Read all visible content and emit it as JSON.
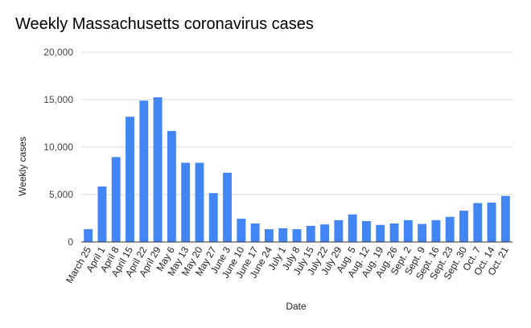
{
  "chart_data": {
    "type": "bar",
    "title": "Weekly Massachusetts coronavirus cases",
    "xlabel": "Date",
    "ylabel": "Weekly cases",
    "ylim": [
      0,
      20000
    ],
    "yticks": [
      "0",
      "5,000",
      "10,000",
      "15,000",
      "20,000"
    ],
    "ytick_values": [
      0,
      5000,
      10000,
      15000,
      20000
    ],
    "grid": true,
    "bar_color": "#4285f4",
    "categories": [
      "March 25",
      "April 1",
      "April 8",
      "April 15",
      "April 22",
      "April 29",
      "May 6",
      "May 13",
      "May 20",
      "May 27",
      "June 3",
      "June 10",
      "June 17",
      "June 24",
      "July 1",
      "July 8",
      "July 15",
      "July 22",
      "July 29",
      "Aug. 5",
      "Aug. 12",
      "Aug. 19",
      "Aug. 26",
      "Sept. 2",
      "Sept. 9",
      "Sept. 16",
      "Sept. 23",
      "Sept. 30",
      "Oct. 7",
      "Oct. 14",
      "Oct. 21"
    ],
    "values": [
      1350,
      5850,
      8950,
      13200,
      14900,
      15250,
      11700,
      8350,
      8350,
      5150,
      7300,
      2450,
      1950,
      1350,
      1450,
      1350,
      1700,
      1850,
      2300,
      2900,
      2200,
      1800,
      1950,
      2300,
      1900,
      2300,
      2650,
      3300,
      4100,
      4150,
      4850
    ]
  }
}
